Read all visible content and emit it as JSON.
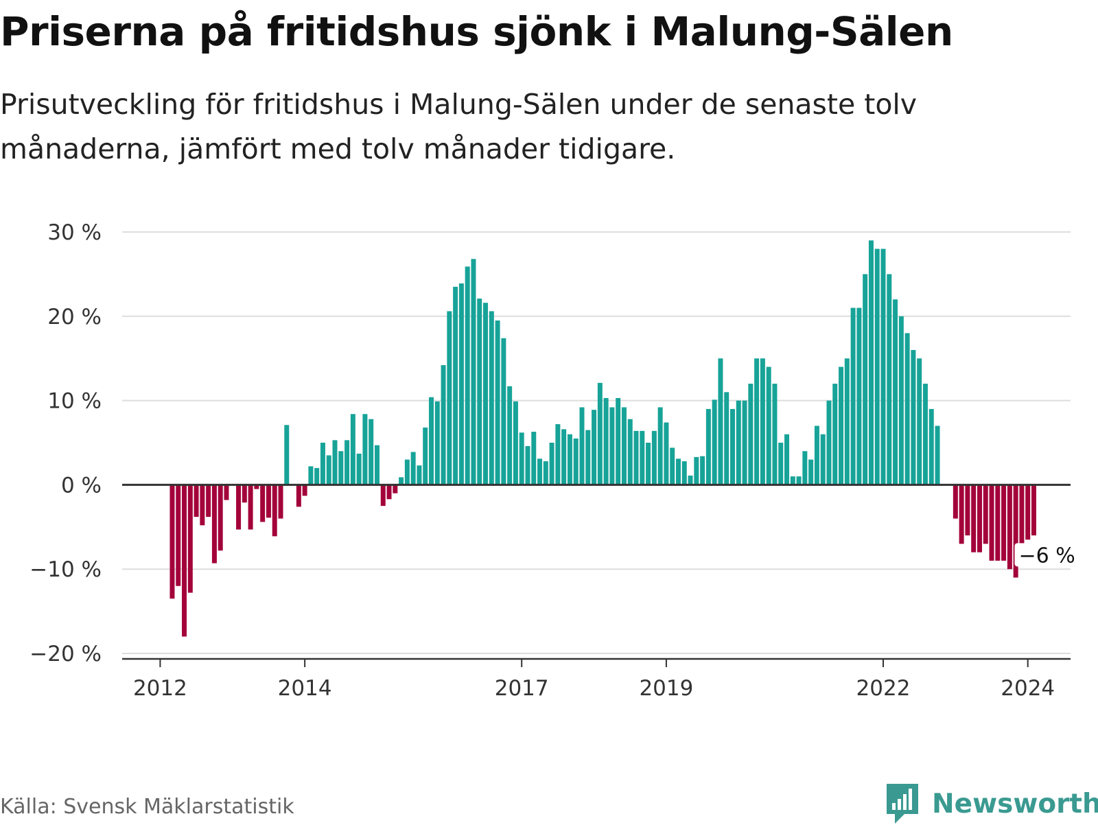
{
  "title": "Priserna på fritidshus sjönk i Malung-Sälen",
  "subtitle": "Prisutveckling för fritidshus i Malung-Sälen under de senaste tolv månaderna, jämfört med tolv månader tidigare.",
  "source": "Källa: Svensk Mäklarstatistik",
  "brand": {
    "name": "Newsworthy",
    "icon": "newsworthy-chat-bars-icon"
  },
  "colors": {
    "positive": "#17a398",
    "negative": "#a3033a",
    "grid": "#dddddd",
    "axis": "#333333",
    "brand": "#3a9a91"
  },
  "chart_data": {
    "type": "bar",
    "title": "Priserna på fritidshus sjönk i Malung-Sälen",
    "xlabel": "",
    "ylabel": "",
    "ylim": [
      -20,
      30
    ],
    "yticks": [
      30,
      20,
      10,
      0,
      -10,
      -20
    ],
    "ytick_labels": [
      "30 %",
      "20 %",
      "10 %",
      "0 %",
      "−10 %",
      "−20 %"
    ],
    "xticks": [
      {
        "label": "2012",
        "index": 5
      },
      {
        "label": "2014",
        "index": 29
      },
      {
        "label": "2017",
        "index": 65
      },
      {
        "label": "2019",
        "index": 89
      },
      {
        "label": "2022",
        "index": 125
      },
      {
        "label": "2024",
        "index": 149
      }
    ],
    "start": "2011-08",
    "frequency": "monthly",
    "end_label": "−6 %",
    "values": [
      0,
      0,
      0,
      0,
      0,
      0,
      0,
      -13.5,
      -12,
      -18,
      -12.8,
      -3.8,
      -4.8,
      -3.8,
      -9.3,
      -7.8,
      -1.8,
      0,
      -5.3,
      -2.1,
      -5.3,
      -0.5,
      -4.4,
      -3.9,
      -6.1,
      -4,
      7.1,
      0,
      -2.6,
      -1.3,
      2.2,
      2,
      5,
      3.5,
      5.3,
      4,
      5.3,
      8.4,
      3.7,
      8.4,
      7.8,
      4.7,
      -2.5,
      -1.7,
      -1,
      0.9,
      3,
      3.9,
      2.3,
      6.8,
      10.4,
      9.9,
      14.2,
      20.6,
      23.5,
      23.9,
      25.9,
      26.8,
      22.1,
      21.6,
      20.6,
      19.5,
      17.4,
      11.7,
      9.9,
      6.2,
      4.6,
      6.3,
      3.1,
      2.8,
      5,
      7.2,
      6.6,
      6,
      5.5,
      9.2,
      6.5,
      8.9,
      12.1,
      10.3,
      9.2,
      10.3,
      9.2,
      7.8,
      6.4,
      6.4,
      5,
      6.4,
      9.2,
      7.4,
      4.4,
      3.1,
      2.8,
      1.1,
      3.3,
      3.4,
      9,
      10.1,
      15,
      11,
      9,
      10,
      10,
      12,
      15,
      15,
      14,
      12,
      5,
      6,
      1,
      1,
      4,
      3,
      7,
      6,
      10,
      12,
      14,
      15,
      21,
      21,
      25,
      29,
      28,
      28,
      25,
      22,
      20,
      18,
      16,
      15,
      12,
      9,
      7,
      0,
      0,
      -4,
      -7,
      -6,
      -8,
      -8,
      -7,
      -9,
      -9,
      -9,
      -10,
      -11,
      -7,
      -6.5,
      -6
    ]
  }
}
